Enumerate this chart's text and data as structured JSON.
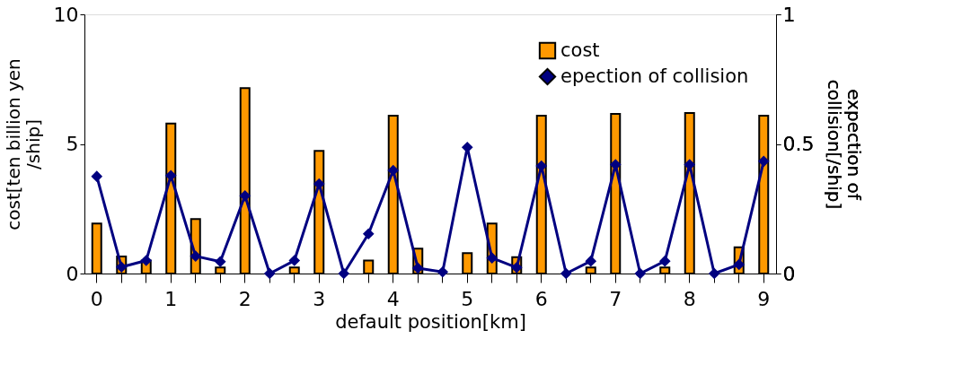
{
  "chart_data": {
    "type": "bar",
    "xlabel": "default position[km]",
    "ylabel": "cost[ten billion yen\n/ship]",
    "y2label": "expection of\ncollision[/ship]",
    "categories": [
      "0",
      null,
      null,
      "1",
      null,
      null,
      "2",
      null,
      null,
      "3",
      null,
      null,
      "4",
      null,
      null,
      "5",
      null,
      null,
      "6",
      null,
      null,
      "7",
      null,
      null,
      "8",
      null,
      null,
      "9"
    ],
    "series": [
      {
        "name": "cost",
        "color": "#ff9900",
        "values": [
          1.93,
          0.66,
          0.5,
          5.79,
          2.1,
          0.23,
          7.15,
          0,
          0.23,
          4.73,
          0,
          0.5,
          6.09,
          0.96,
          0,
          0.79,
          1.93,
          0.63,
          6.09,
          0,
          0.23,
          6.16,
          0,
          0.23,
          6.19,
          0,
          1.01,
          6.09
        ]
      },
      {
        "name": "epection of collision",
        "type": "line",
        "axis": "y2",
        "color": "#000080",
        "marker": "diamond",
        "values": [
          0.375,
          0.025,
          0.05,
          0.378,
          0.067,
          0.046,
          0.3,
          0,
          0.05,
          0.346,
          0,
          0.153,
          0.398,
          0.021,
          0.006,
          0.487,
          0.06,
          0.023,
          0.415,
          0,
          0.048,
          0.42,
          0,
          0.048,
          0.42,
          0,
          0.035,
          0.433
        ]
      }
    ],
    "ylim": [
      0,
      10
    ],
    "yticks": [
      0,
      5,
      10
    ],
    "y2lim": [
      0,
      1
    ],
    "y2ticks": [
      0,
      0.5,
      1
    ],
    "grid": false,
    "legend": "top right"
  }
}
